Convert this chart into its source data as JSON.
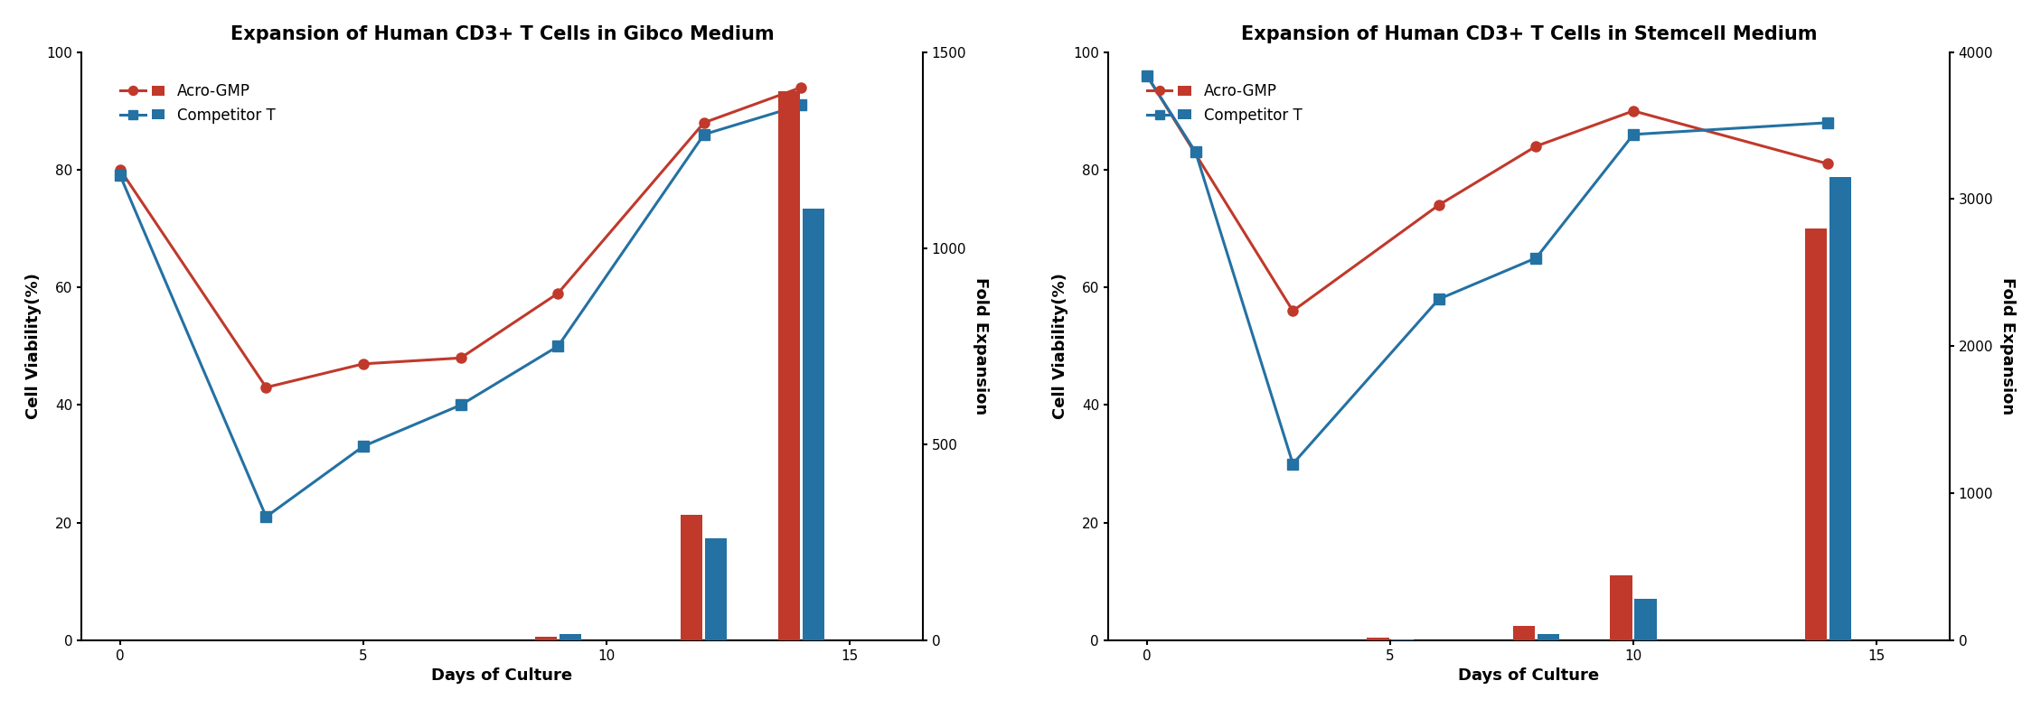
{
  "chart1": {
    "title": "Expansion of Human CD3+ T Cells in Gibco Medium",
    "line_acro_x": [
      0,
      3,
      5,
      7,
      9,
      12,
      14
    ],
    "line_acro_y": [
      80,
      43,
      47,
      48,
      59,
      88,
      94
    ],
    "line_comp_x": [
      0,
      3,
      5,
      7,
      9,
      12,
      14
    ],
    "line_comp_y": [
      79,
      21,
      33,
      40,
      50,
      86,
      91
    ],
    "bar_days": [
      9,
      12,
      14
    ],
    "bar_acro_fold": [
      10,
      320,
      1400
    ],
    "bar_comp_fold": [
      15,
      260,
      1100
    ],
    "ylim_left": [
      0,
      100
    ],
    "ylim_right": [
      0,
      1500
    ],
    "xticks": [
      0,
      5,
      10,
      15
    ],
    "yticks_left": [
      0,
      20,
      40,
      60,
      80,
      100
    ],
    "yticks_right": [
      0,
      500,
      1000,
      1500
    ],
    "xlabel": "Days of Culture",
    "ylabel_left": "Cell Viability(%)",
    "ylabel_right": "Fold Expansion",
    "xlim": [
      -0.8,
      16.5
    ]
  },
  "chart2": {
    "title": "Expansion of Human CD3+ T Cells in Stemcell Medium",
    "line_acro_x": [
      0,
      3,
      6,
      8,
      10,
      14
    ],
    "line_acro_y": [
      96,
      56,
      74,
      84,
      90,
      81
    ],
    "line_comp_x": [
      0,
      1,
      3,
      6,
      8,
      10,
      14
    ],
    "line_comp_y": [
      96,
      83,
      30,
      58,
      65,
      86,
      88
    ],
    "bar_days": [
      5,
      8,
      10,
      14
    ],
    "bar_acro_fold": [
      20,
      100,
      440,
      2800
    ],
    "bar_comp_fold": [
      5,
      40,
      280,
      3150
    ],
    "ylim_left": [
      0,
      100
    ],
    "ylim_right": [
      0,
      4000
    ],
    "xticks": [
      0,
      5,
      10,
      15
    ],
    "yticks_left": [
      0,
      20,
      40,
      60,
      80,
      100
    ],
    "yticks_right": [
      0,
      1000,
      2000,
      3000,
      4000
    ],
    "xlabel": "Days of Culture",
    "ylabel_left": "Cell Viability(%)",
    "ylabel_right": "Fold Expansion",
    "xlim": [
      -0.8,
      16.5
    ]
  },
  "color_acro": "#C0392B",
  "color_comp": "#2471A3",
  "line_width": 2.2,
  "marker_size": 8,
  "font_size_title": 15,
  "font_size_label": 13,
  "font_size_tick": 11,
  "font_size_legend": 12,
  "bg_color": "#FFFFFF",
  "bar_width": 0.45,
  "bar_gap": 0.5
}
